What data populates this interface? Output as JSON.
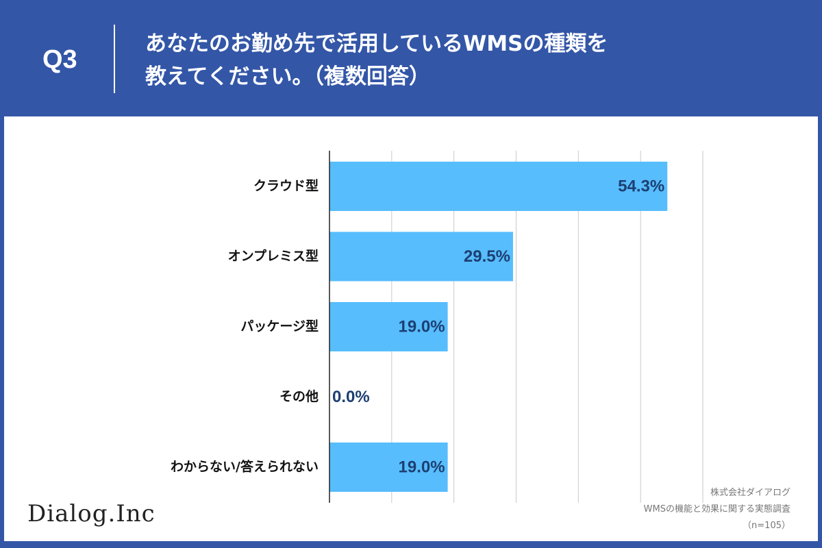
{
  "header": {
    "question_number": "Q3",
    "title_line1": "あなたのお勤め先で活用しているWMSの種類を",
    "title_line2": "教えてください。（複数回答）"
  },
  "chart_data": {
    "type": "bar",
    "orientation": "horizontal",
    "categories": [
      "クラウド型",
      "オンプレミス型",
      "パッケージ型",
      "その他",
      "わからない/答えられない"
    ],
    "values": [
      54.3,
      29.5,
      19.0,
      0.0,
      19.0
    ],
    "value_labels": [
      "54.3%",
      "29.5%",
      "19.0%",
      "0.0%",
      "19.0%"
    ],
    "xlim": [
      0,
      60
    ],
    "grid": true,
    "bar_color": "#57bdfc",
    "label_color": "#1d3f73"
  },
  "footer": {
    "logo": "Dialog.Inc",
    "source_company": "株式会社ダイアログ",
    "source_survey": "WMSの機能と効果に関する実態調査",
    "sample_size": "（n=105）"
  },
  "colors": {
    "background": "#3356a7",
    "panel": "#ffffff"
  }
}
